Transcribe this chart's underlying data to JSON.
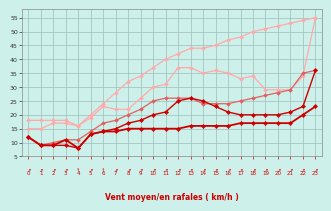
{
  "xlabel": "Vent moyen/en rafales ( km/h )",
  "x": [
    0,
    1,
    2,
    3,
    4,
    5,
    6,
    7,
    8,
    9,
    10,
    11,
    12,
    13,
    14,
    15,
    16,
    17,
    18,
    19,
    20,
    21,
    22,
    23
  ],
  "line_light1": [
    18,
    18,
    18,
    18,
    16,
    20,
    24,
    28,
    32,
    34,
    37,
    40,
    42,
    44,
    44,
    45,
    47,
    48,
    50,
    51,
    52,
    53,
    54,
    55
  ],
  "line_light2": [
    15,
    15,
    17,
    17,
    16,
    19,
    23,
    22,
    22,
    26,
    30,
    31,
    37,
    37,
    35,
    36,
    35,
    33,
    34,
    29,
    29,
    29,
    34,
    55
  ],
  "line_med1": [
    12,
    9,
    10,
    11,
    11,
    14,
    17,
    18,
    20,
    22,
    25,
    26,
    26,
    26,
    24,
    24,
    24,
    25,
    26,
    27,
    28,
    29,
    35,
    36
  ],
  "line_dark1": [
    12,
    9,
    9,
    9,
    8,
    13,
    14,
    15,
    17,
    18,
    20,
    21,
    25,
    26,
    25,
    23,
    21,
    20,
    20,
    20,
    20,
    21,
    23,
    36
  ],
  "line_dark2": [
    12,
    9,
    9,
    11,
    8,
    13,
    14,
    14,
    15,
    15,
    15,
    15,
    15,
    16,
    16,
    16,
    16,
    17,
    17,
    17,
    17,
    17,
    20,
    23
  ],
  "background": "#cef0ea",
  "grid_color": "#9bbfba",
  "color_light": "#ffaaaa",
  "color_med": "#e06060",
  "color_dark": "#cc0000",
  "ylim": [
    5,
    58
  ],
  "yticks": [
    5,
    10,
    15,
    20,
    25,
    30,
    35,
    40,
    45,
    50,
    55
  ],
  "xticks": [
    0,
    1,
    2,
    3,
    4,
    5,
    6,
    7,
    8,
    9,
    10,
    11,
    12,
    13,
    14,
    15,
    16,
    17,
    18,
    19,
    20,
    21,
    22,
    23
  ]
}
